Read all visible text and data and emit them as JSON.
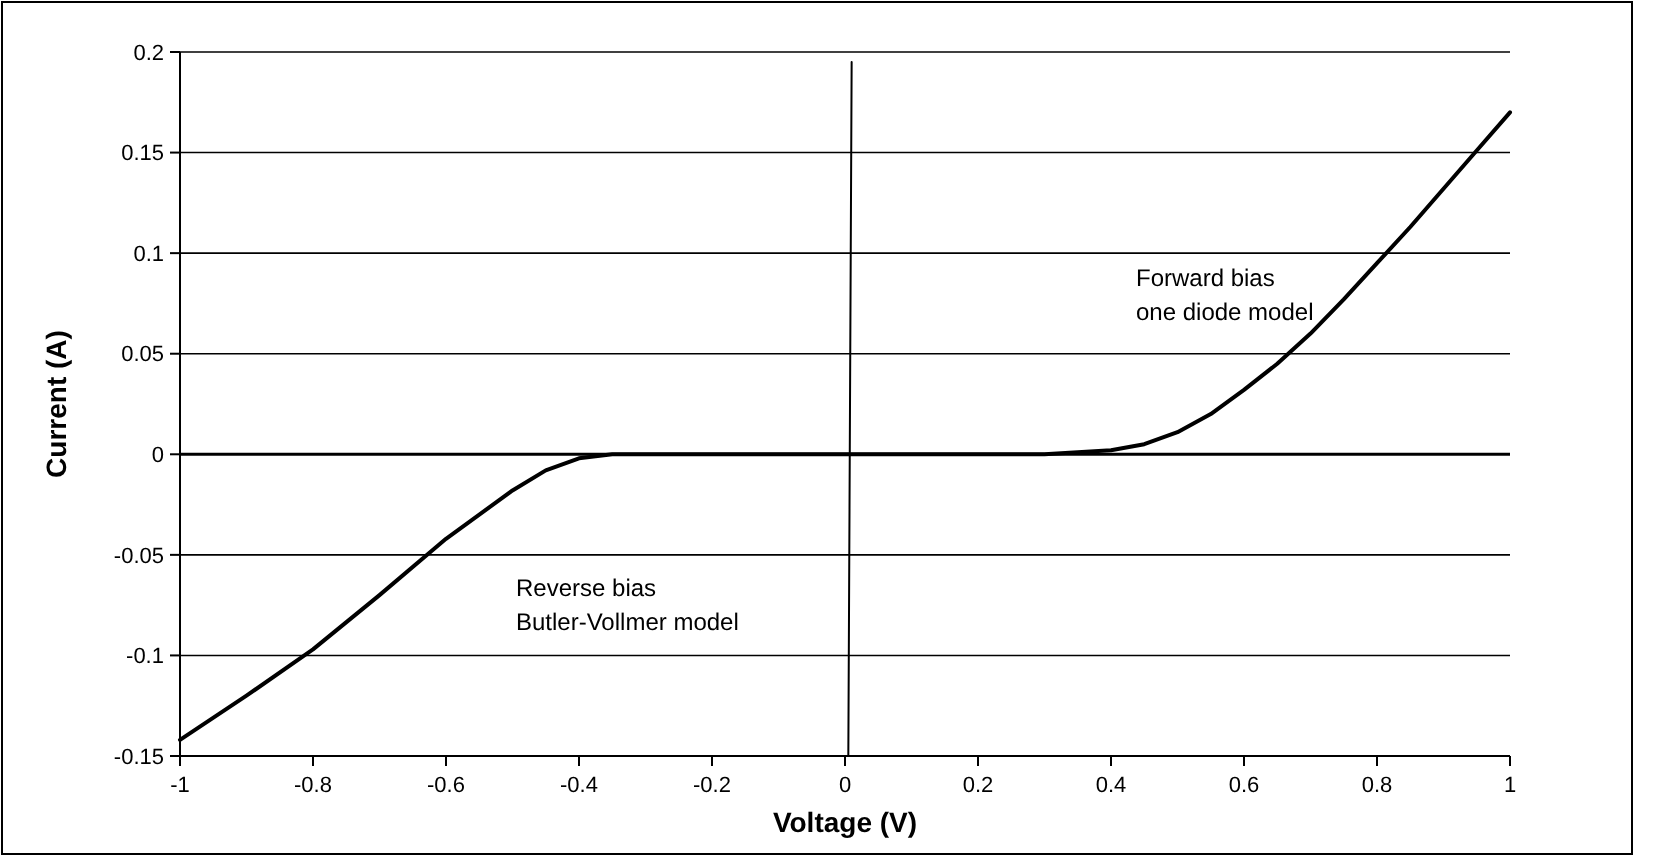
{
  "chart_data": {
    "type": "line",
    "xlabel": "Voltage (V)",
    "ylabel": "Current (A)",
    "xlim": [
      -1,
      1
    ],
    "ylim": [
      -0.15,
      0.2
    ],
    "xticks": [
      -1,
      -0.8,
      -0.6,
      -0.4,
      -0.2,
      0,
      0.2,
      0.4,
      0.6,
      0.8,
      1
    ],
    "yticks": [
      -0.15,
      -0.1,
      -0.05,
      0,
      0.05,
      0.1,
      0.15,
      0.2
    ],
    "grid": "y",
    "marker": "none",
    "line_style": "solid",
    "series": [
      {
        "color": "#000000",
        "x": [
          -1,
          -0.9,
          -0.8,
          -0.7,
          -0.6,
          -0.5,
          -0.45,
          -0.4,
          -0.35,
          -0.3,
          0,
          0.3,
          0.4,
          0.45,
          0.5,
          0.55,
          0.6,
          0.65,
          0.7,
          0.75,
          0.8,
          0.85,
          0.9,
          0.95,
          1
        ],
        "values": [
          -0.142,
          -0.12,
          -0.097,
          -0.07,
          -0.042,
          -0.018,
          -0.008,
          -0.002,
          0,
          0,
          0,
          0,
          0.002,
          0.005,
          0.011,
          0.02,
          0.032,
          0.045,
          0.06,
          0.077,
          0.095,
          0.113,
          0.132,
          0.151,
          0.17
        ]
      },
      {
        "color": "#000000",
        "x": [
          0.005,
          0.01
        ],
        "values": [
          -0.15,
          0.195
        ]
      }
    ],
    "annotations": [
      "Forward bias\none diode model",
      "Reverse bias\nButler-Vollmer model"
    ]
  }
}
